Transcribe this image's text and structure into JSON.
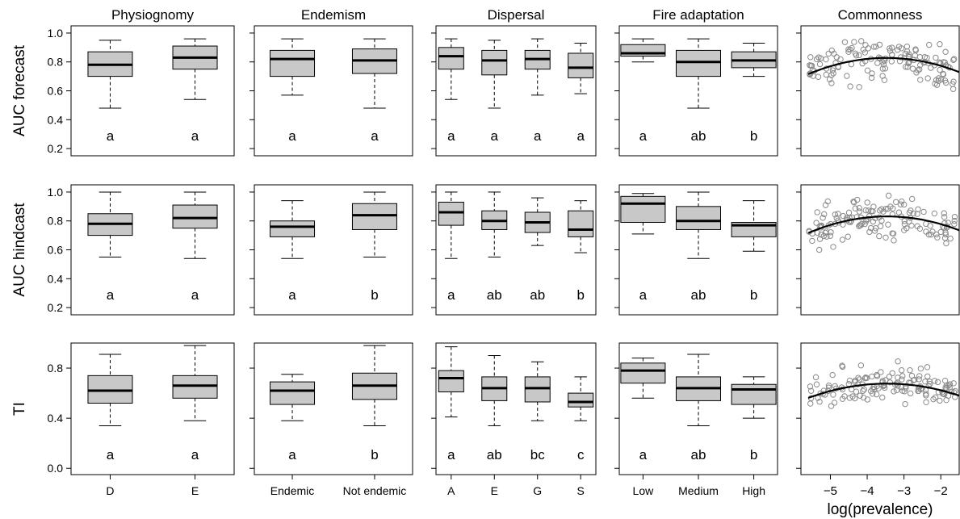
{
  "chart_data": {
    "type": "boxplot",
    "column_titles": [
      "Physiognomy",
      "Endemism",
      "Dispersal",
      "Fire adaptation",
      "Commonness"
    ],
    "row_labels": [
      "AUC forecast",
      "AUC hindcast",
      "TI"
    ],
    "y_ranges": [
      [
        0.15,
        1.05
      ],
      [
        0.15,
        1.05
      ],
      [
        -0.05,
        1.0
      ]
    ],
    "y_ticks": [
      [
        "0.2",
        "0.4",
        "0.6",
        "0.8",
        "1.0"
      ],
      [
        "0.2",
        "0.4",
        "0.6",
        "0.8",
        "1.0"
      ],
      [
        "0.0",
        "0.4",
        "0.8"
      ]
    ],
    "x_categories": [
      [
        "D",
        "E"
      ],
      [
        "Endemic",
        "Not endemic"
      ],
      [
        "A",
        "E",
        "G",
        "S"
      ],
      [
        "Low",
        "Medium",
        "High"
      ]
    ],
    "commonness_xlabel": "log(prevalence)",
    "commonness_xticks": [
      "−5",
      "−4",
      "−3",
      "−2"
    ],
    "commonness_xrange": [
      -5.8,
      -1.5
    ],
    "panels": [
      [
        {
          "boxes": [
            {
              "min": 0.48,
              "q1": 0.7,
              "med": 0.78,
              "q3": 0.87,
              "max": 0.95
            },
            {
              "min": 0.54,
              "q1": 0.75,
              "med": 0.83,
              "q3": 0.91,
              "max": 0.96
            }
          ],
          "letters": [
            "a",
            "a"
          ]
        },
        {
          "boxes": [
            {
              "min": 0.57,
              "q1": 0.7,
              "med": 0.82,
              "q3": 0.88,
              "max": 0.96
            },
            {
              "min": 0.48,
              "q1": 0.72,
              "med": 0.81,
              "q3": 0.89,
              "max": 0.96
            }
          ],
          "letters": [
            "a",
            "a"
          ]
        },
        {
          "boxes": [
            {
              "min": 0.54,
              "q1": 0.75,
              "med": 0.84,
              "q3": 0.9,
              "max": 0.96
            },
            {
              "min": 0.48,
              "q1": 0.71,
              "med": 0.81,
              "q3": 0.88,
              "max": 0.95
            },
            {
              "min": 0.57,
              "q1": 0.75,
              "med": 0.82,
              "q3": 0.88,
              "max": 0.96
            },
            {
              "min": 0.58,
              "q1": 0.69,
              "med": 0.76,
              "q3": 0.86,
              "max": 0.93
            }
          ],
          "letters": [
            "a",
            "a",
            "a",
            "a"
          ]
        },
        {
          "boxes": [
            {
              "min": 0.8,
              "q1": 0.84,
              "med": 0.86,
              "q3": 0.92,
              "max": 0.96
            },
            {
              "min": 0.48,
              "q1": 0.7,
              "med": 0.8,
              "q3": 0.88,
              "max": 0.96
            },
            {
              "min": 0.7,
              "q1": 0.76,
              "med": 0.81,
              "q3": 0.87,
              "max": 0.93
            }
          ],
          "letters": [
            "a",
            "ab",
            "b"
          ]
        },
        {
          "trend": {
            "a": -0.025,
            "b": -0.174,
            "c": 0.525
          },
          "seed": 11
        }
      ],
      [
        {
          "boxes": [
            {
              "min": 0.55,
              "q1": 0.7,
              "med": 0.78,
              "q3": 0.85,
              "max": 1.0
            },
            {
              "min": 0.54,
              "q1": 0.75,
              "med": 0.82,
              "q3": 0.91,
              "max": 1.0
            }
          ],
          "letters": [
            "a",
            "a"
          ]
        },
        {
          "boxes": [
            {
              "min": 0.54,
              "q1": 0.69,
              "med": 0.76,
              "q3": 0.8,
              "max": 0.94
            },
            {
              "min": 0.55,
              "q1": 0.74,
              "med": 0.84,
              "q3": 0.92,
              "max": 1.0
            }
          ],
          "letters": [
            "a",
            "b"
          ]
        },
        {
          "boxes": [
            {
              "min": 0.54,
              "q1": 0.77,
              "med": 0.86,
              "q3": 0.93,
              "max": 1.0
            },
            {
              "min": 0.55,
              "q1": 0.74,
              "med": 0.8,
              "q3": 0.87,
              "max": 1.0
            },
            {
              "min": 0.63,
              "q1": 0.72,
              "med": 0.79,
              "q3": 0.86,
              "max": 0.96
            },
            {
              "min": 0.58,
              "q1": 0.69,
              "med": 0.74,
              "q3": 0.87,
              "max": 0.94
            }
          ],
          "letters": [
            "a",
            "ab",
            "ab",
            "b"
          ]
        },
        {
          "boxes": [
            {
              "min": 0.71,
              "q1": 0.79,
              "med": 0.92,
              "q3": 0.97,
              "max": 0.99
            },
            {
              "min": 0.54,
              "q1": 0.74,
              "med": 0.8,
              "q3": 0.9,
              "max": 1.0
            },
            {
              "min": 0.59,
              "q1": 0.69,
              "med": 0.77,
              "q3": 0.79,
              "max": 0.94
            }
          ],
          "letters": [
            "a",
            "ab",
            "b"
          ]
        },
        {
          "trend": {
            "a": -0.025,
            "b": -0.173,
            "c": 0.532
          },
          "seed": 23
        }
      ],
      [
        {
          "boxes": [
            {
              "min": 0.34,
              "q1": 0.52,
              "med": 0.62,
              "q3": 0.74,
              "max": 0.91
            },
            {
              "min": 0.38,
              "q1": 0.56,
              "med": 0.66,
              "q3": 0.74,
              "max": 0.98
            }
          ],
          "letters": [
            "a",
            "a"
          ]
        },
        {
          "boxes": [
            {
              "min": 0.38,
              "q1": 0.51,
              "med": 0.62,
              "q3": 0.69,
              "max": 0.75
            },
            {
              "min": 0.34,
              "q1": 0.55,
              "med": 0.66,
              "q3": 0.76,
              "max": 0.98
            }
          ],
          "letters": [
            "a",
            "b"
          ]
        },
        {
          "boxes": [
            {
              "min": 0.41,
              "q1": 0.61,
              "med": 0.72,
              "q3": 0.78,
              "max": 0.97
            },
            {
              "min": 0.34,
              "q1": 0.54,
              "med": 0.64,
              "q3": 0.73,
              "max": 0.9
            },
            {
              "min": 0.38,
              "q1": 0.53,
              "med": 0.64,
              "q3": 0.73,
              "max": 0.85
            },
            {
              "min": 0.38,
              "q1": 0.49,
              "med": 0.53,
              "q3": 0.6,
              "max": 0.73
            }
          ],
          "letters": [
            "a",
            "ab",
            "bc",
            "c"
          ]
        },
        {
          "boxes": [
            {
              "min": 0.56,
              "q1": 0.68,
              "med": 0.78,
              "q3": 0.84,
              "max": 0.88
            },
            {
              "min": 0.34,
              "q1": 0.54,
              "med": 0.64,
              "q3": 0.73,
              "max": 0.91
            },
            {
              "min": 0.4,
              "q1": 0.51,
              "med": 0.63,
              "q3": 0.67,
              "max": 0.73
            }
          ],
          "letters": [
            "a",
            "ab",
            "b"
          ]
        },
        {
          "trend": {
            "a": -0.025,
            "b": -0.173,
            "c": 0.377
          },
          "seed": 37
        }
      ]
    ]
  }
}
